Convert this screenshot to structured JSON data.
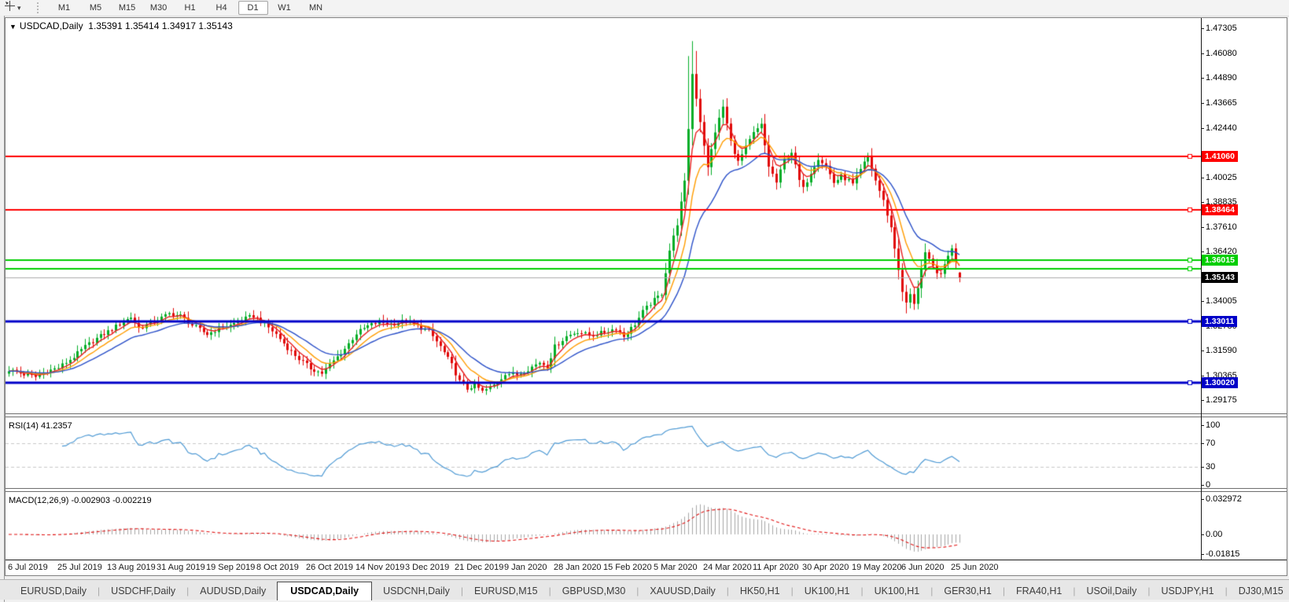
{
  "toolbar": {
    "tool_icon": "crosshair",
    "dropdown_icon": "▾",
    "timeframes": [
      "M1",
      "M5",
      "M15",
      "M30",
      "H1",
      "H4",
      "D1",
      "W1",
      "MN"
    ],
    "active_timeframe": "D1"
  },
  "chart": {
    "collapse_icon": "▼",
    "title_symbol": "USDCAD,Daily",
    "title_quotes": "1.35391 1.35414 1.34917 1.35143"
  },
  "chart_data": {
    "type": "candlestick",
    "symbol": "USDCAD",
    "timeframe": "Daily",
    "current": {
      "open": 1.35391,
      "high": 1.35414,
      "low": 1.34917,
      "close": 1.35143
    },
    "candles_count": 250,
    "price_range": {
      "top": 1.47803,
      "bottom": 1.28522
    },
    "y_axis_ticks": [
      "1.47305",
      "1.46080",
      "1.44890",
      "1.43665",
      "1.42440",
      "1.40025",
      "1.38835",
      "1.37610",
      "1.36420",
      "1.34005",
      "1.32780",
      "1.31590",
      "1.30365",
      "1.29175"
    ],
    "x_axis_labels": [
      "6 Jul 2019",
      "25 Jul 2019",
      "13 Aug 2019",
      "31 Aug 2019",
      "19 Sep 2019",
      "8 Oct 2019",
      "26 Oct 2019",
      "14 Nov 2019",
      "3 Dec 2019",
      "21 Dec 2019",
      "9 Jan 2020",
      "28 Jan 2020",
      "15 Feb 2020",
      "5 Mar 2020",
      "24 Mar 2020",
      "11 Apr 2020",
      "30 Apr 2020",
      "19 May 2020",
      "6 Jun 2020",
      "25 Jun 2020"
    ],
    "x_label_step": 13,
    "up_color": "#00ad26",
    "down_color": "#e00606",
    "horizontal_lines": [
      {
        "price": 1.4106,
        "label": "1.41060",
        "color": "#ff0000",
        "width": 2
      },
      {
        "price": 1.38464,
        "label": "1.38464",
        "color": "#ff0000",
        "width": 2
      },
      {
        "price": 1.36015,
        "label": "1.36015",
        "color": "#00ce00",
        "width": 2
      },
      {
        "price": 1.3559,
        "label": "",
        "color": "#00ce00",
        "width": 2
      },
      {
        "price": 1.33011,
        "label": "1.33011",
        "color": "#0000c8",
        "width": 3
      },
      {
        "price": 1.3002,
        "label": "1.30020",
        "color": "#0000c8",
        "width": 3
      }
    ],
    "current_price": {
      "value": 1.35143,
      "label": "1.35143",
      "line_color": "#ababab",
      "tag_bg": "#000000"
    },
    "moving_averages": [
      {
        "period": 5,
        "type": "ema",
        "color": "#e82020"
      },
      {
        "period": 10,
        "type": "ema",
        "color": "#ff9c00"
      },
      {
        "period": 20,
        "type": "ema",
        "color": "#2b50c8"
      }
    ],
    "close_path": [
      [
        0,
        1.3065
      ],
      [
        4,
        1.3042
      ],
      [
        7,
        1.303
      ],
      [
        10,
        1.3058
      ],
      [
        13,
        1.3075
      ],
      [
        17,
        1.3128
      ],
      [
        20,
        1.3178
      ],
      [
        23,
        1.3218
      ],
      [
        26,
        1.3252
      ],
      [
        29,
        1.3288
      ],
      [
        32,
        1.3322
      ],
      [
        34,
        1.3268
      ],
      [
        37,
        1.3292
      ],
      [
        39,
        1.3308
      ],
      [
        42,
        1.3338
      ],
      [
        45,
        1.3328
      ],
      [
        48,
        1.3282
      ],
      [
        52,
        1.3238
      ],
      [
        55,
        1.3268
      ],
      [
        58,
        1.3282
      ],
      [
        61,
        1.3308
      ],
      [
        64,
        1.3328
      ],
      [
        67,
        1.3288
      ],
      [
        70,
        1.3238
      ],
      [
        73,
        1.3172
      ],
      [
        76,
        1.3118
      ],
      [
        79,
        1.3072
      ],
      [
        82,
        1.3048
      ],
      [
        85,
        1.3108
      ],
      [
        88,
        1.3168
      ],
      [
        91,
        1.3242
      ],
      [
        94,
        1.3278
      ],
      [
        97,
        1.3298
      ],
      [
        100,
        1.3288
      ],
      [
        104,
        1.3302
      ],
      [
        107,
        1.3278
      ],
      [
        110,
        1.3252
      ],
      [
        113,
        1.3178
      ],
      [
        116,
        1.3088
      ],
      [
        118,
        1.3008
      ],
      [
        120,
        1.2972
      ],
      [
        122,
        1.2992
      ],
      [
        124,
        1.2958
      ],
      [
        126,
        1.2978
      ],
      [
        128,
        1.3002
      ],
      [
        130,
        1.3048
      ],
      [
        133,
        1.3042
      ],
      [
        136,
        1.3068
      ],
      [
        139,
        1.3102
      ],
      [
        141,
        1.3082
      ],
      [
        143,
        1.3178
      ],
      [
        146,
        1.3228
      ],
      [
        149,
        1.3252
      ],
      [
        152,
        1.3232
      ],
      [
        156,
        1.3248
      ],
      [
        159,
        1.3268
      ],
      [
        161,
        1.3228
      ],
      [
        164,
        1.3288
      ],
      [
        166,
        1.3348
      ],
      [
        168,
        1.3388
      ],
      [
        171,
        1.3438
      ],
      [
        173,
        1.3648
      ],
      [
        175,
        1.3778
      ],
      [
        177,
        1.3978
      ],
      [
        179,
        1.4508
      ],
      [
        181,
        1.4278
      ],
      [
        183,
        1.4048
      ],
      [
        185,
        1.4228
      ],
      [
        187,
        1.4348
      ],
      [
        189,
        1.4178
      ],
      [
        191,
        1.4078
      ],
      [
        193,
        1.4148
      ],
      [
        195,
        1.4218
      ],
      [
        197,
        1.4258
      ],
      [
        199,
        1.4058
      ],
      [
        201,
        1.3978
      ],
      [
        203,
        1.4088
      ],
      [
        205,
        1.4128
      ],
      [
        207,
        1.3988
      ],
      [
        208,
        1.3948
      ],
      [
        210,
        1.4028
      ],
      [
        212,
        1.4098
      ],
      [
        214,
        1.4058
      ],
      [
        216,
        1.3978
      ],
      [
        218,
        1.4008
      ],
      [
        220,
        1.3988
      ],
      [
        221,
        1.3968
      ],
      [
        223,
        1.4038
      ],
      [
        225,
        1.4108
      ],
      [
        227,
        1.3988
      ],
      [
        229,
        1.3888
      ],
      [
        231,
        1.3758
      ],
      [
        233,
        1.3558
      ],
      [
        234,
        1.3438
      ],
      [
        235,
        1.3392
      ],
      [
        236,
        1.3428
      ],
      [
        237,
        1.3392
      ],
      [
        238,
        1.3468
      ],
      [
        239,
        1.3558
      ],
      [
        240,
        1.3628
      ],
      [
        242,
        1.3568
      ],
      [
        244,
        1.3522
      ],
      [
        245,
        1.3578
      ],
      [
        246,
        1.3628
      ],
      [
        247,
        1.3652
      ],
      [
        248,
        1.3598
      ],
      [
        249,
        1.3514
      ]
    ],
    "overrides": {
      "124": {
        "low": 1.2952
      },
      "178": {
        "high": 1.4595
      },
      "179": {
        "high": 1.4668
      },
      "180": {
        "high": 1.462
      },
      "235": {
        "low": 1.334
      },
      "249": {
        "open": 1.35391,
        "high": 1.35414,
        "low": 1.34917,
        "close": 1.35143
      }
    },
    "rsi": {
      "label": "RSI(14) 41.2357",
      "period": 14,
      "value": 41.2357,
      "levels": [
        70,
        30
      ],
      "ticks": [
        "100",
        "70",
        "30",
        "0"
      ],
      "line_color": "#4f9ad4",
      "level_color": "#c8c8c8"
    },
    "macd": {
      "label": "MACD(12,26,9) -0.002903 -0.002219",
      "fast": 12,
      "slow": 26,
      "signal": 9,
      "macd_value": -0.002903,
      "signal_value": -0.002219,
      "ticks": [
        "0.032972",
        "0.00",
        "-0.01815"
      ],
      "histogram_color": "#a6a6a6",
      "signal_color": "#e01212"
    }
  },
  "tabs": {
    "items": [
      "EURUSD,Daily",
      "USDCHF,Daily",
      "AUDUSD,Daily",
      "USDCAD,Daily",
      "USDCNH,Daily",
      "EURUSD,M15",
      "GBPUSD,M30",
      "XAUUSD,Daily",
      "HK50,H1",
      "UK100,H1",
      "UK100,H1",
      "GER30,H1",
      "FRA40,H1",
      "USOil,Daily",
      "USDJPY,H1",
      "DJ30,M15"
    ],
    "active_index": 3,
    "divider": "|",
    "scroll_left_icon": "◂",
    "scroll_right_icon": "▸"
  }
}
